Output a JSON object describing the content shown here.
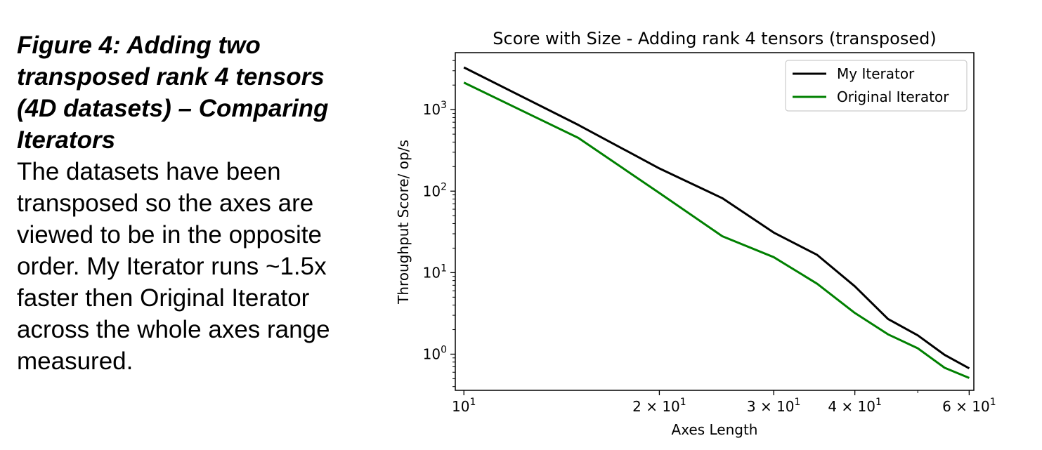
{
  "caption": {
    "title": "Figure 4: Adding two transposed rank 4 tensors (4D datasets) – Comparing Iterators",
    "body": "The datasets have been transposed so the axes are viewed to be in the opposite order. My Iterator runs ~1.5x faster then Original Iterator across the whole axes range measured."
  },
  "chart_data": {
    "type": "line",
    "title": "Score with Size - Adding rank 4 tensors (transposed)",
    "xlabel": "Axes Length",
    "ylabel": "Throughput Score/ op/s",
    "xscale": "log",
    "yscale": "log",
    "xlim": [
      9.7,
      61
    ],
    "ylim": [
      0.36,
      5000
    ],
    "grid": false,
    "legend_position": "top-right",
    "x_ticks": [
      {
        "value": 10,
        "base": "10",
        "exp": "1"
      },
      {
        "value": 20,
        "base": "2 × 10",
        "exp": "1"
      },
      {
        "value": 30,
        "base": "3 × 10",
        "exp": "1"
      },
      {
        "value": 40,
        "base": "4 × 10",
        "exp": "1"
      },
      {
        "value": 60,
        "base": "6 × 10",
        "exp": "1"
      }
    ],
    "y_ticks": [
      {
        "value": 1,
        "base": "10",
        "exp": "0"
      },
      {
        "value": 10,
        "base": "10",
        "exp": "1"
      },
      {
        "value": 100,
        "base": "10",
        "exp": "2"
      },
      {
        "value": 1000,
        "base": "10",
        "exp": "3"
      }
    ],
    "x": [
      10,
      15,
      20,
      25,
      30,
      35,
      40,
      45,
      50,
      55,
      60
    ],
    "series": [
      {
        "name": "My Iterator",
        "color": "#000000",
        "values": [
          3300,
          650,
          190,
          82,
          31,
          16.5,
          6.8,
          2.7,
          1.7,
          0.98,
          0.67
        ]
      },
      {
        "name": "Original Iterator",
        "color": "#008000",
        "values": [
          2150,
          450,
          95,
          28,
          15.5,
          7.3,
          3.2,
          1.75,
          1.18,
          0.68,
          0.51
        ]
      }
    ]
  }
}
